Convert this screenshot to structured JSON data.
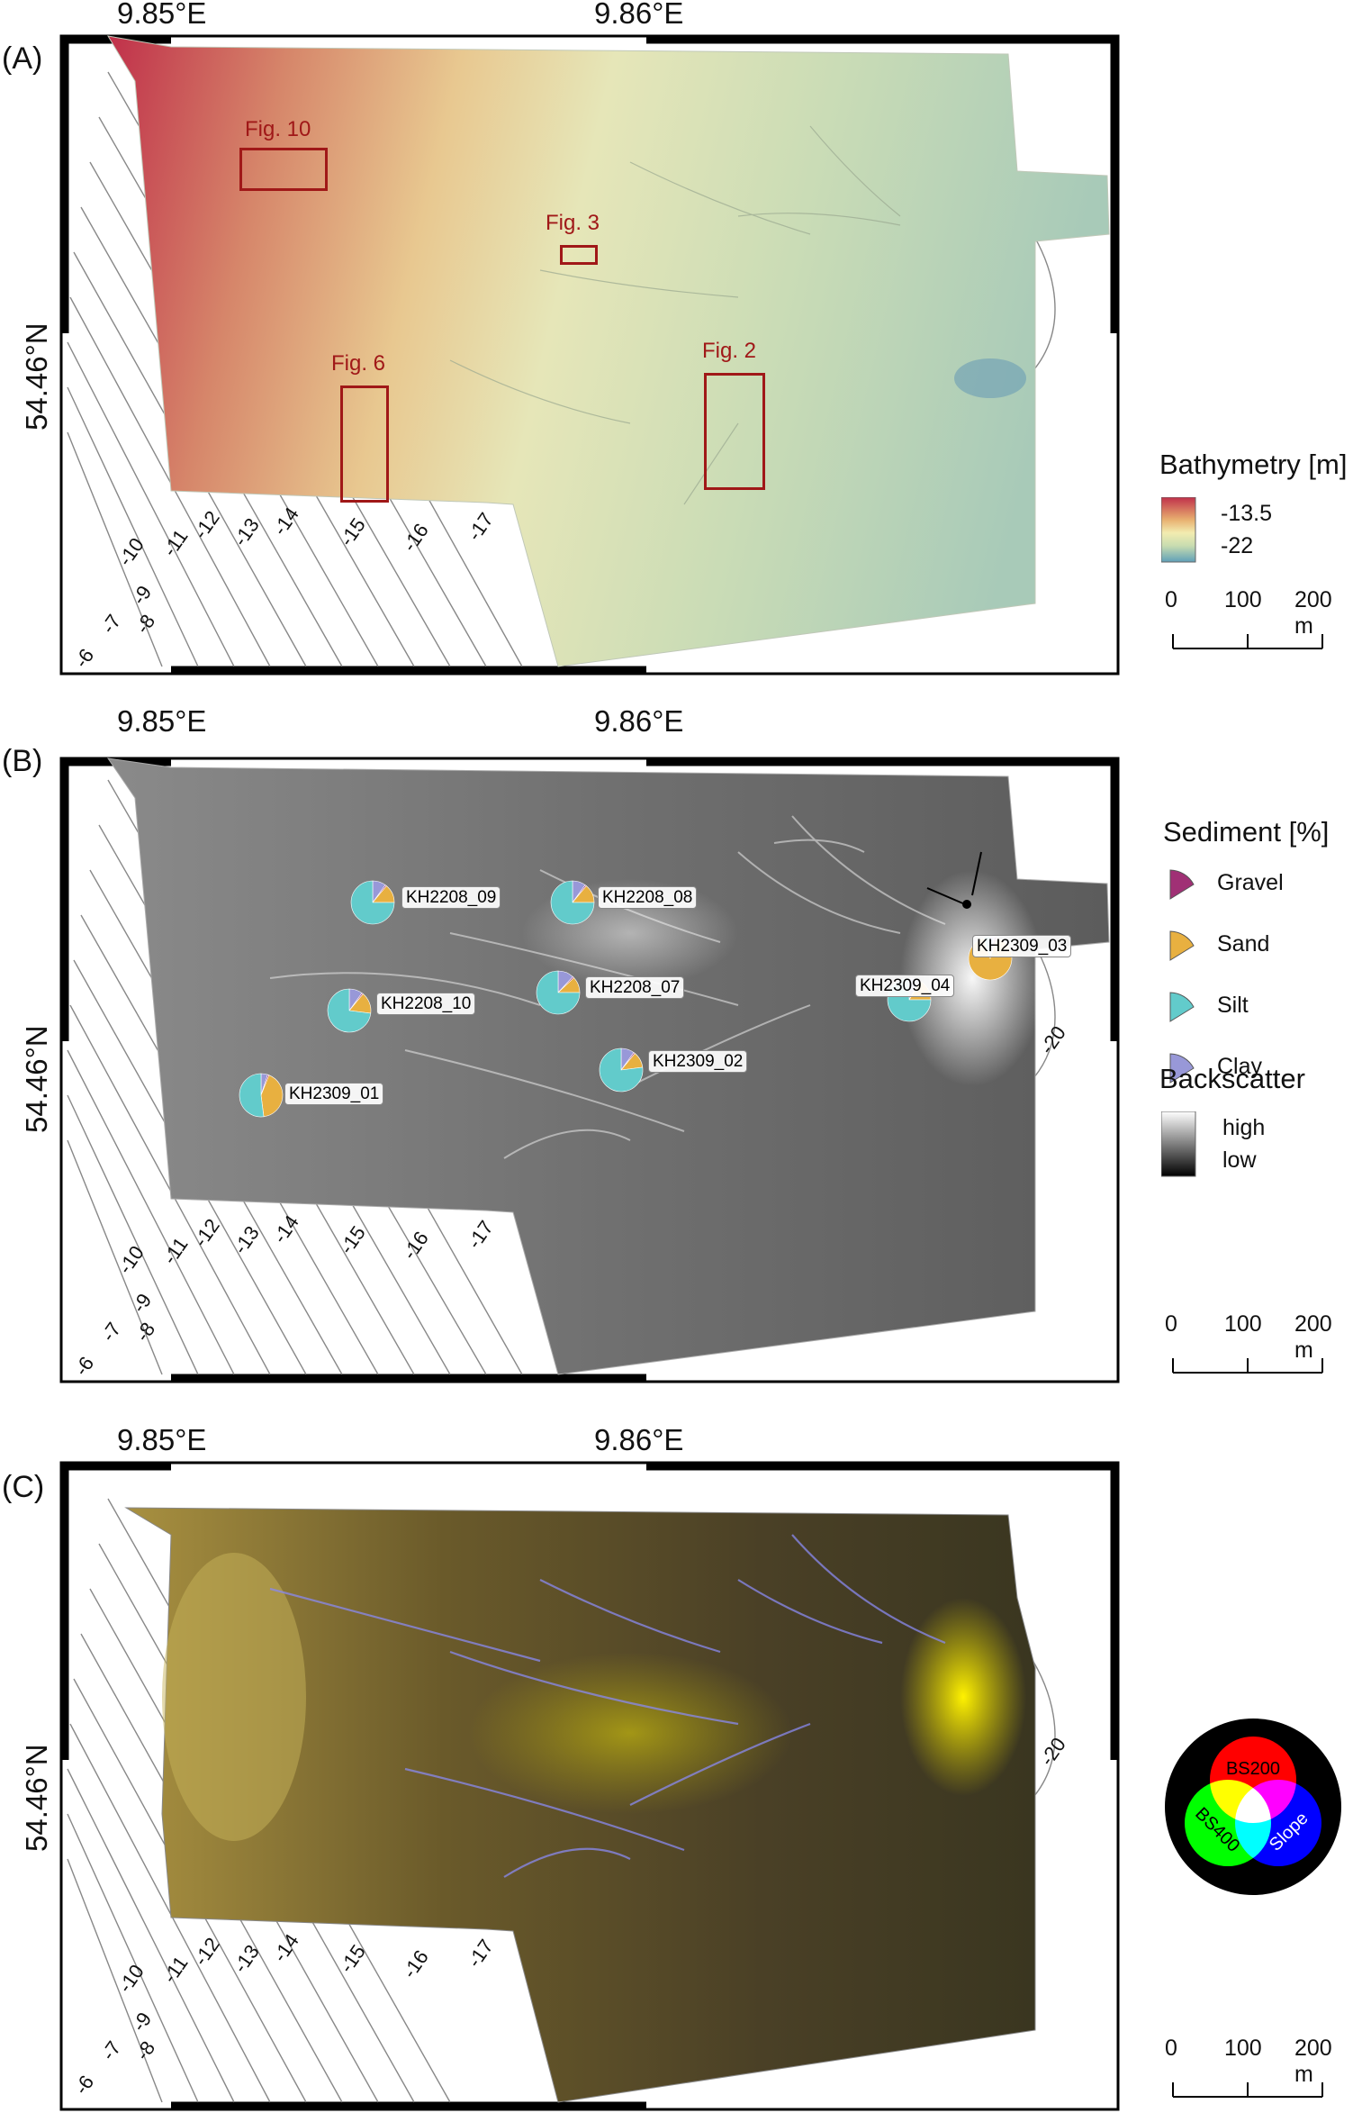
{
  "panels": {
    "a": {
      "label": "(A)",
      "lon1": "9.85°E",
      "lon2": "9.86°E",
      "lat": "54.46°N"
    },
    "b": {
      "label": "(B)",
      "lon1": "9.85°E",
      "lon2": "9.86°E",
      "lat": "54.46°N"
    },
    "c": {
      "label": "(C)",
      "lon1": "9.85°E",
      "lon2": "9.86°E",
      "lat": "54.46°N"
    }
  },
  "contour_labels": [
    "-6",
    "-7",
    "-8",
    "-9",
    "-10",
    "-11",
    "-12",
    "-13",
    "-14",
    "-15",
    "-16",
    "-17"
  ],
  "contour_label_20": "-20",
  "figure_boxes": [
    "Fig. 10",
    "Fig. 3",
    "Fig. 6",
    "Fig. 2"
  ],
  "bathymetry_legend": {
    "title": "Bathymetry [m]",
    "max": "-13.5",
    "min": "-22",
    "colors": [
      "#c0304a",
      "#e8b070",
      "#f2ecb0",
      "#c8dcb0",
      "#5fa0b8"
    ]
  },
  "sediment_legend": {
    "title": "Sediment [%]",
    "items": [
      {
        "name": "Gravel",
        "color": "#a03075"
      },
      {
        "name": "Sand",
        "color": "#e8b040"
      },
      {
        "name": "Silt",
        "color": "#62cbcb"
      },
      {
        "name": "Clay",
        "color": "#9898d8"
      }
    ]
  },
  "backscatter_legend": {
    "title": "Backscatter",
    "high": "high",
    "low": "low"
  },
  "rgb_legend": {
    "red": "BS200",
    "green": "BS400",
    "blue": "Slope"
  },
  "scale_bar": {
    "t0": "0",
    "t1": "100",
    "t2": "200 m"
  },
  "samples": [
    {
      "id": "KH2208_09",
      "gravel": 1,
      "sand": 14,
      "silt": 75,
      "clay": 10
    },
    {
      "id": "KH2208_08",
      "gravel": 1,
      "sand": 14,
      "silt": 75,
      "clay": 10
    },
    {
      "id": "KH2208_10",
      "gravel": 1,
      "sand": 16,
      "silt": 73,
      "clay": 10
    },
    {
      "id": "KH2208_07",
      "gravel": 1,
      "sand": 12,
      "silt": 75,
      "clay": 12
    },
    {
      "id": "KH2309_04",
      "gravel": 1,
      "sand": 16,
      "silt": 75,
      "clay": 8
    },
    {
      "id": "KH2309_03",
      "gravel": 2,
      "sand": 90,
      "silt": 5,
      "clay": 3
    },
    {
      "id": "KH2309_02",
      "gravel": 1,
      "sand": 12,
      "silt": 77,
      "clay": 10
    },
    {
      "id": "KH2309_01",
      "gravel": 1,
      "sand": 42,
      "silt": 52,
      "clay": 5
    }
  ]
}
